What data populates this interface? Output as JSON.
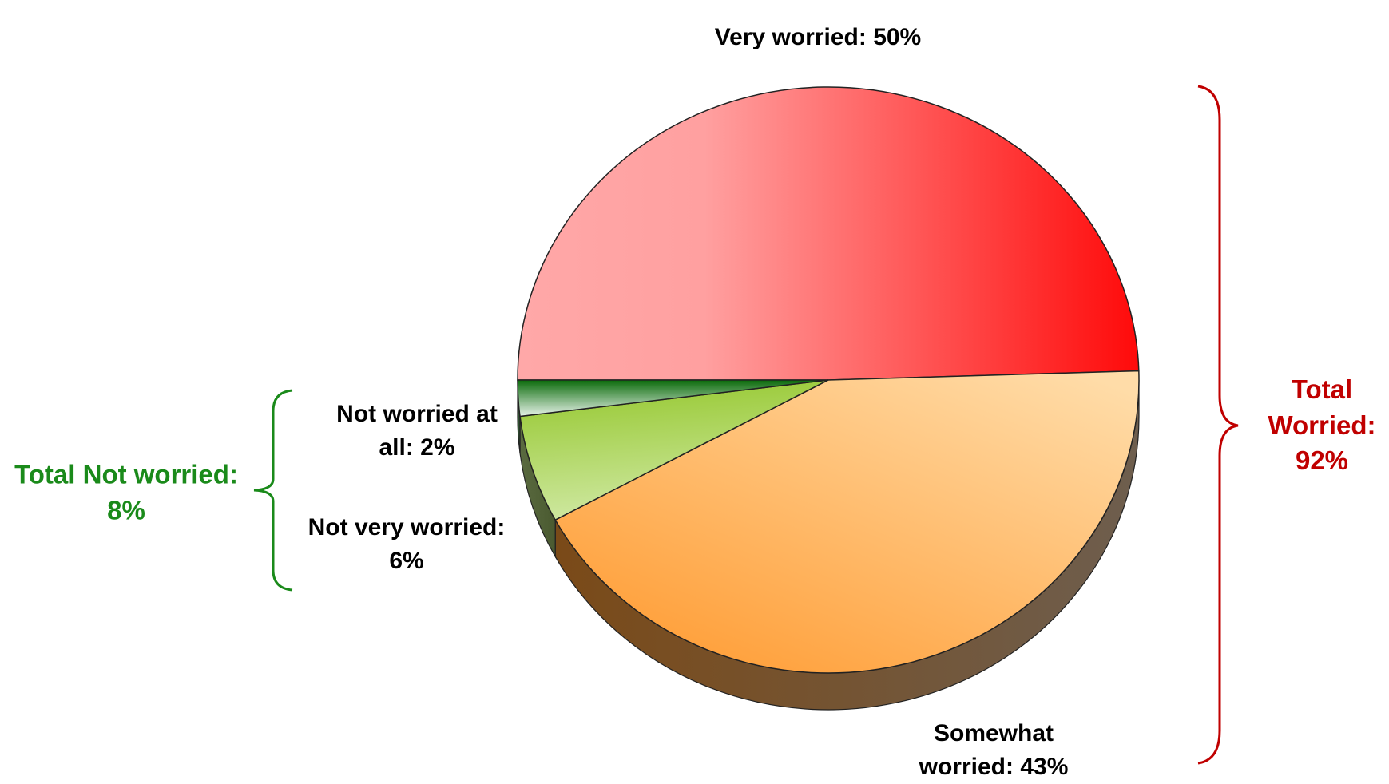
{
  "chart_data": {
    "type": "pie",
    "categories": [
      "Very worried:",
      "Somewhat worried:",
      "Not very worried:",
      "Not worried at all:"
    ],
    "values": [
      50,
      43,
      6,
      2
    ],
    "value_labels": [
      "50%",
      "43%",
      "6%",
      "2%"
    ],
    "colors": [
      "#ff2020",
      "#ffb060",
      "#a8d048",
      "#1a7a1a"
    ],
    "annotations": [
      {
        "text": "Total Worried: 92%",
        "color": "#c00000"
      },
      {
        "text": "Total Not worried: 8%",
        "color": "#1a8a1a"
      }
    ]
  }
}
